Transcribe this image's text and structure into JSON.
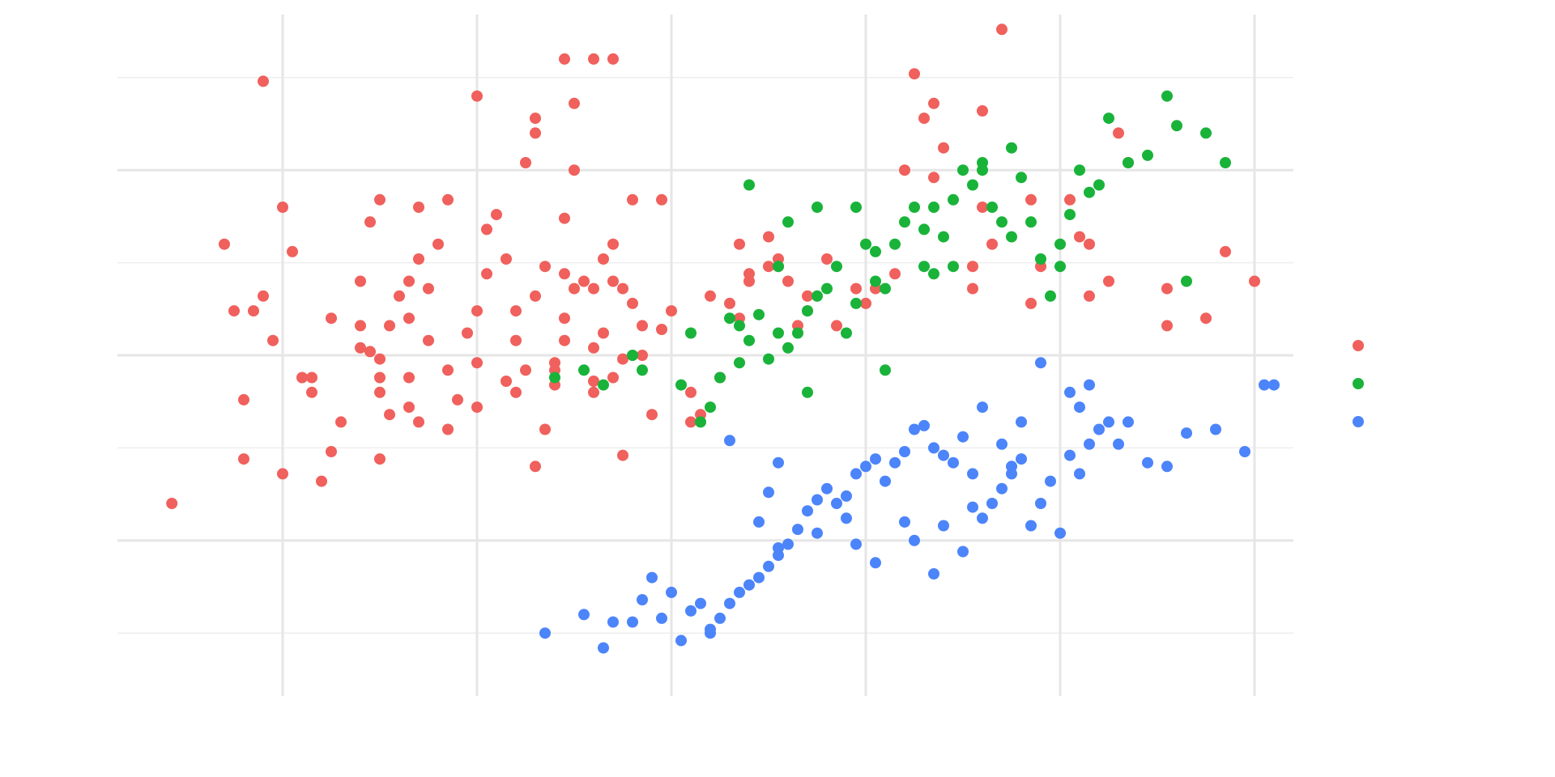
{
  "chart_data": {
    "type": "scatter",
    "title": "",
    "xlabel": "",
    "ylabel": "",
    "grid": true,
    "legend_placement": "right",
    "xlim": [
      -2.85,
      3.2
    ],
    "ylim": [
      -4.6,
      4.6
    ],
    "x_gridlines": [
      -2.0,
      -1.0,
      0.0,
      1.0,
      2.0,
      3.0
    ],
    "y_major_gridlines": [
      -2.5,
      0.0,
      2.5
    ],
    "y_minor_gridlines": [
      -3.75,
      -1.25,
      1.25,
      3.75
    ],
    "series": [
      {
        "color": "#f0605c",
        "points": [
          [
            -2.57,
            -2.0
          ],
          [
            -2.2,
            -1.4
          ],
          [
            -2.0,
            -1.6
          ],
          [
            -1.9,
            -0.3
          ],
          [
            -2.05,
            0.2
          ],
          [
            -2.3,
            1.5
          ],
          [
            -2.2,
            -0.6
          ],
          [
            -2.25,
            0.6
          ],
          [
            -2.15,
            0.6
          ],
          [
            -2.1,
            0.8
          ],
          [
            -2.1,
            3.7
          ],
          [
            -2.0,
            2.0
          ],
          [
            -1.95,
            1.4
          ],
          [
            -1.85,
            -0.3
          ],
          [
            -1.85,
            -0.5
          ],
          [
            -1.8,
            -1.7
          ],
          [
            -1.75,
            -1.3
          ],
          [
            -1.7,
            -0.9
          ],
          [
            -1.75,
            0.5
          ],
          [
            -1.6,
            0.1
          ],
          [
            -1.6,
            0.4
          ],
          [
            -1.6,
            1.0
          ],
          [
            -1.55,
            1.8
          ],
          [
            -1.5,
            2.1
          ],
          [
            -1.5,
            -1.4
          ],
          [
            -1.5,
            -0.05
          ],
          [
            -1.55,
            0.05
          ],
          [
            -1.45,
            0.4
          ],
          [
            -1.5,
            -0.5
          ],
          [
            -1.5,
            -0.3
          ],
          [
            -1.35,
            -0.7
          ],
          [
            -1.3,
            -0.9
          ],
          [
            -1.45,
            -0.8
          ],
          [
            -1.35,
            -0.3
          ],
          [
            -1.4,
            0.8
          ],
          [
            -1.35,
            1.0
          ],
          [
            -1.35,
            0.5
          ],
          [
            -1.3,
            1.3
          ],
          [
            -1.3,
            2.0
          ],
          [
            -1.25,
            0.9
          ],
          [
            -1.2,
            1.5
          ],
          [
            -1.25,
            0.2
          ],
          [
            -1.15,
            -0.2
          ],
          [
            -1.15,
            -1.0
          ],
          [
            -1.1,
            -0.6
          ],
          [
            -1.15,
            2.1
          ],
          [
            -1.0,
            3.5
          ],
          [
            -1.0,
            0.6
          ],
          [
            -1.05,
            0.3
          ],
          [
            -1.0,
            -0.1
          ],
          [
            -1.0,
            -0.7
          ],
          [
            -0.95,
            1.7
          ],
          [
            -0.95,
            1.1
          ],
          [
            -0.9,
            1.9
          ],
          [
            -0.85,
            1.3
          ],
          [
            -0.8,
            0.6
          ],
          [
            -0.8,
            0.2
          ],
          [
            -0.85,
            -0.35
          ],
          [
            -0.75,
            -0.2
          ],
          [
            -0.8,
            -0.5
          ],
          [
            -0.7,
            -1.5
          ],
          [
            -0.75,
            2.6
          ],
          [
            -0.7,
            3.0
          ],
          [
            -0.7,
            3.2
          ],
          [
            -0.65,
            1.2
          ],
          [
            -0.7,
            0.8
          ],
          [
            -0.6,
            -0.4
          ],
          [
            -0.6,
            -0.1
          ],
          [
            -0.6,
            -0.2
          ],
          [
            -0.55,
            0.5
          ],
          [
            -0.55,
            0.2
          ],
          [
            -0.55,
            1.1
          ],
          [
            -0.5,
            0.9
          ],
          [
            -0.45,
            1.0
          ],
          [
            -0.4,
            0.9
          ],
          [
            -0.4,
            0.1
          ],
          [
            -0.4,
            -0.5
          ],
          [
            -0.35,
            0.3
          ],
          [
            -0.3,
            -0.3
          ],
          [
            -0.25,
            0.9
          ],
          [
            -0.15,
            0.4
          ],
          [
            -0.1,
            -0.8
          ],
          [
            -0.15,
            0.0
          ],
          [
            -0.2,
            0.7
          ],
          [
            -0.25,
            -0.05
          ],
          [
            -0.3,
            1.0
          ],
          [
            -0.05,
            2.1
          ],
          [
            -0.2,
            2.1
          ],
          [
            -0.55,
            1.85
          ],
          [
            -0.5,
            3.4
          ],
          [
            -0.5,
            2.5
          ],
          [
            -0.55,
            4.0
          ],
          [
            -0.4,
            4.0
          ],
          [
            -0.3,
            4.0
          ],
          [
            -0.35,
            1.3
          ],
          [
            -0.3,
            1.5
          ],
          [
            -0.65,
            -1.0
          ],
          [
            -0.4,
            -0.35
          ],
          [
            -0.25,
            -1.35
          ],
          [
            -0.05,
            0.35
          ],
          [
            0.0,
            0.6
          ],
          [
            0.1,
            -0.9
          ],
          [
            0.1,
            -0.5
          ],
          [
            0.15,
            -0.8
          ],
          [
            0.2,
            0.8
          ],
          [
            0.25,
            -0.3
          ],
          [
            0.3,
            0.7
          ],
          [
            0.35,
            0.5
          ],
          [
            0.35,
            1.5
          ],
          [
            0.4,
            1.0
          ],
          [
            0.4,
            1.1
          ],
          [
            0.5,
            1.2
          ],
          [
            0.5,
            1.6
          ],
          [
            0.55,
            1.2
          ],
          [
            0.55,
            1.3
          ],
          [
            0.6,
            1.0
          ],
          [
            0.65,
            0.4
          ],
          [
            0.7,
            0.6
          ],
          [
            0.7,
            0.8
          ],
          [
            0.8,
            1.3
          ],
          [
            0.85,
            0.4
          ],
          [
            0.95,
            0.9
          ],
          [
            1.0,
            0.7
          ],
          [
            1.05,
            0.9
          ],
          [
            1.15,
            1.1
          ],
          [
            1.2,
            2.5
          ],
          [
            1.25,
            3.8
          ],
          [
            1.3,
            3.2
          ],
          [
            1.35,
            3.4
          ],
          [
            1.4,
            2.8
          ],
          [
            1.35,
            2.4
          ],
          [
            1.55,
            1.2
          ],
          [
            1.55,
            0.9
          ],
          [
            1.6,
            2.0
          ],
          [
            1.6,
            3.3
          ],
          [
            1.65,
            1.5
          ],
          [
            1.7,
            4.4
          ],
          [
            1.85,
            2.1
          ],
          [
            1.85,
            0.7
          ],
          [
            1.9,
            1.2
          ],
          [
            2.05,
            2.1
          ],
          [
            2.1,
            1.6
          ],
          [
            2.15,
            1.5
          ],
          [
            2.3,
            3.0
          ],
          [
            2.35,
            2.6
          ],
          [
            2.15,
            0.8
          ],
          [
            2.25,
            1.0
          ],
          [
            2.55,
            0.4
          ],
          [
            2.55,
            0.9
          ],
          [
            2.75,
            0.5
          ],
          [
            2.85,
            1.4
          ],
          [
            3.0,
            1.0
          ]
        ]
      },
      {
        "color": "#19b33a",
        "points": [
          [
            -0.6,
            -0.3
          ],
          [
            -0.45,
            -0.2
          ],
          [
            -0.35,
            -0.4
          ],
          [
            -0.2,
            0.0
          ],
          [
            -0.15,
            -0.2
          ],
          [
            0.05,
            -0.4
          ],
          [
            0.1,
            0.3
          ],
          [
            0.15,
            -0.9
          ],
          [
            0.2,
            -0.7
          ],
          [
            0.25,
            -0.3
          ],
          [
            0.3,
            0.5
          ],
          [
            0.35,
            0.4
          ],
          [
            0.4,
            0.2
          ],
          [
            0.45,
            0.55
          ],
          [
            0.5,
            -0.05
          ],
          [
            0.55,
            0.3
          ],
          [
            0.6,
            0.1
          ],
          [
            0.65,
            0.3
          ],
          [
            0.7,
            0.6
          ],
          [
            0.75,
            0.8
          ],
          [
            0.8,
            0.9
          ],
          [
            0.85,
            1.2
          ],
          [
            0.9,
            0.3
          ],
          [
            0.95,
            0.7
          ],
          [
            1.0,
            1.5
          ],
          [
            1.05,
            1.4
          ],
          [
            1.1,
            0.9
          ],
          [
            1.15,
            1.5
          ],
          [
            1.2,
            1.8
          ],
          [
            1.25,
            2.0
          ],
          [
            1.3,
            1.7
          ],
          [
            1.35,
            1.1
          ],
          [
            1.4,
            1.6
          ],
          [
            1.45,
            2.1
          ],
          [
            1.5,
            2.5
          ],
          [
            1.55,
            2.3
          ],
          [
            1.6,
            2.6
          ],
          [
            1.65,
            2.0
          ],
          [
            1.7,
            1.8
          ],
          [
            1.75,
            1.6
          ],
          [
            1.8,
            2.4
          ],
          [
            1.85,
            1.8
          ],
          [
            1.9,
            1.3
          ],
          [
            1.95,
            0.8
          ],
          [
            2.0,
            1.5
          ],
          [
            2.05,
            1.9
          ],
          [
            2.1,
            2.5
          ],
          [
            2.15,
            2.2
          ],
          [
            2.25,
            3.2
          ],
          [
            2.35,
            2.6
          ],
          [
            2.45,
            2.7
          ],
          [
            2.55,
            3.5
          ],
          [
            2.6,
            3.1
          ],
          [
            2.65,
            1.0
          ],
          [
            2.75,
            3.0
          ],
          [
            2.85,
            2.6
          ],
          [
            1.05,
            1.0
          ],
          [
            1.3,
            1.2
          ],
          [
            1.1,
            -0.2
          ],
          [
            0.4,
            2.3
          ],
          [
            0.6,
            1.8
          ],
          [
            0.55,
            1.2
          ],
          [
            0.95,
            2.0
          ],
          [
            1.75,
            2.8
          ],
          [
            1.6,
            2.5
          ],
          [
            1.45,
            1.2
          ],
          [
            2.0,
            1.2
          ],
          [
            2.2,
            2.3
          ],
          [
            0.7,
            -0.5
          ],
          [
            0.35,
            -0.1
          ],
          [
            0.75,
            2.0
          ],
          [
            1.35,
            2.0
          ]
        ]
      },
      {
        "color": "#4c84fa",
        "points": [
          [
            -0.65,
            -3.75
          ],
          [
            -0.45,
            -3.5
          ],
          [
            -0.35,
            -3.95
          ],
          [
            -0.3,
            -3.6
          ],
          [
            -0.2,
            -3.6
          ],
          [
            -0.15,
            -3.3
          ],
          [
            -0.1,
            -3.0
          ],
          [
            -0.05,
            -3.55
          ],
          [
            0.0,
            -3.2
          ],
          [
            0.05,
            -3.85
          ],
          [
            0.1,
            -3.45
          ],
          [
            0.15,
            -3.35
          ],
          [
            0.2,
            -3.7
          ],
          [
            0.25,
            -3.55
          ],
          [
            0.3,
            -3.35
          ],
          [
            0.35,
            -3.2
          ],
          [
            0.4,
            -3.1
          ],
          [
            0.45,
            -3.0
          ],
          [
            0.5,
            -2.85
          ],
          [
            0.55,
            -2.7
          ],
          [
            0.6,
            -2.55
          ],
          [
            0.65,
            -2.35
          ],
          [
            0.7,
            -2.1
          ],
          [
            0.75,
            -2.4
          ],
          [
            0.8,
            -1.8
          ],
          [
            0.85,
            -2.0
          ],
          [
            0.9,
            -1.9
          ],
          [
            0.95,
            -1.6
          ],
          [
            1.0,
            -1.5
          ],
          [
            1.05,
            -1.4
          ],
          [
            1.1,
            -1.7
          ],
          [
            1.15,
            -1.45
          ],
          [
            1.2,
            -1.3
          ],
          [
            1.25,
            -1.0
          ],
          [
            1.3,
            -0.95
          ],
          [
            1.35,
            -1.25
          ],
          [
            1.4,
            -1.35
          ],
          [
            1.45,
            -1.45
          ],
          [
            1.5,
            -1.1
          ],
          [
            1.55,
            -1.6
          ],
          [
            1.6,
            -2.2
          ],
          [
            1.65,
            -2.0
          ],
          [
            1.7,
            -1.8
          ],
          [
            1.75,
            -1.6
          ],
          [
            1.8,
            -1.4
          ],
          [
            1.85,
            -2.3
          ],
          [
            1.9,
            -2.0
          ],
          [
            1.95,
            -1.7
          ],
          [
            2.0,
            -2.4
          ],
          [
            2.05,
            -1.35
          ],
          [
            2.1,
            -1.6
          ],
          [
            2.15,
            -1.2
          ],
          [
            2.2,
            -1.0
          ],
          [
            2.25,
            -0.9
          ],
          [
            2.3,
            -1.2
          ],
          [
            2.35,
            -0.9
          ],
          [
            2.45,
            -1.45
          ],
          [
            2.55,
            -1.5
          ],
          [
            2.65,
            -1.05
          ],
          [
            2.8,
            -1.0
          ],
          [
            2.95,
            -1.3
          ],
          [
            3.05,
            -0.4
          ],
          [
            3.1,
            -0.4
          ],
          [
            0.2,
            -3.75
          ],
          [
            0.45,
            -2.25
          ],
          [
            0.55,
            -2.6
          ],
          [
            0.9,
            -2.2
          ],
          [
            1.05,
            -2.8
          ],
          [
            1.25,
            -2.5
          ],
          [
            1.4,
            -2.3
          ],
          [
            1.55,
            -2.05
          ],
          [
            1.6,
            -0.7
          ],
          [
            1.7,
            -1.2
          ],
          [
            1.75,
            -1.5
          ],
          [
            1.8,
            -0.9
          ],
          [
            1.9,
            -0.1
          ],
          [
            2.05,
            -0.5
          ],
          [
            2.1,
            -0.7
          ],
          [
            2.15,
            -0.4
          ],
          [
            0.3,
            -1.15
          ],
          [
            0.5,
            -1.85
          ],
          [
            0.55,
            -1.45
          ],
          [
            0.75,
            -1.95
          ],
          [
            0.95,
            -2.55
          ],
          [
            1.2,
            -2.25
          ],
          [
            1.35,
            -2.95
          ],
          [
            1.5,
            -2.65
          ]
        ]
      }
    ]
  }
}
